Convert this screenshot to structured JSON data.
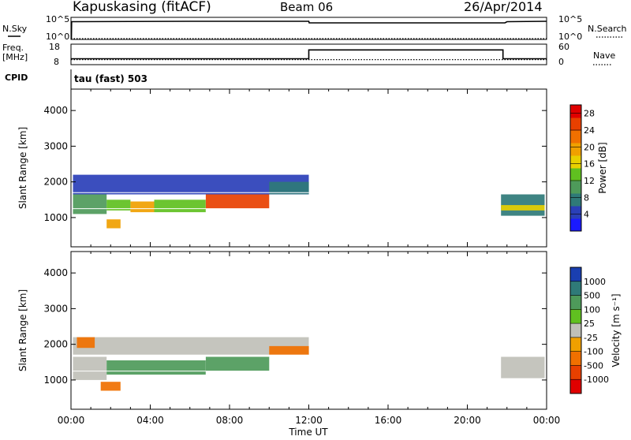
{
  "header": {
    "station": "Kapuskasing (fitACF)",
    "beam": "Beam 06",
    "date": "26/Apr/2014",
    "mode": "tau (fast) 503"
  },
  "left_labels": {
    "nsky": "N.Sky",
    "freq": "Freq.",
    "freq_unit": "[MHz]",
    "cpid": "CPID"
  },
  "right_labels": {
    "nsearch": "N.Search",
    "nave": "Nave"
  },
  "panels": {
    "noise": {
      "tick_top": "10^5",
      "tick_bottom": "10^0",
      "rtick_top": "10^5",
      "rtick_bottom": "10^0"
    },
    "freq": {
      "tick_top": "18",
      "tick_bottom": "8",
      "rtick_top": "60",
      "rtick_bottom": "0"
    },
    "power": {
      "ylabel": "Slant Range [km]",
      "colorbar_label": "Power [dB]"
    },
    "velocity": {
      "ylabel": "Slant Range [km]",
      "colorbar_label": "Velocity [m s⁻¹]"
    }
  },
  "xaxis": {
    "label": "Time UT",
    "ticks": [
      "00:00",
      "04:00",
      "08:00",
      "12:00",
      "16:00",
      "20:00",
      "00:00"
    ]
  },
  "chart_data": [
    {
      "type": "line",
      "name": "noise",
      "xlabel": "",
      "ylabel": "",
      "xlim": [
        0,
        24
      ],
      "series": [
        {
          "name": "N.Sky",
          "x": [
            0,
            0.02,
            0.03,
            6,
            12,
            12.02,
            21.9,
            22,
            24
          ],
          "y": [
            0,
            0,
            4.3,
            4.4,
            4.4,
            4.0,
            4.0,
            4.3,
            4.4
          ]
        },
        {
          "name": "N.Search",
          "x": [
            0,
            24
          ],
          "y": [
            0,
            0
          ]
        }
      ],
      "ylim": [
        0,
        5
      ]
    },
    {
      "type": "line",
      "name": "frequency",
      "xlim": [
        0,
        24
      ],
      "series": [
        {
          "name": "Freq.",
          "x": [
            0,
            12,
            12,
            21.8,
            21.8,
            24
          ],
          "y": [
            10.5,
            10.5,
            15.6,
            15.6,
            10.5,
            10.5
          ]
        },
        {
          "name": "Nave",
          "x": [
            0,
            24
          ],
          "y": [
            10,
            10
          ]
        }
      ],
      "ylim": [
        8,
        18
      ]
    },
    {
      "type": "heatmap",
      "name": "power",
      "xlim": [
        0,
        24
      ],
      "ylim": [
        180,
        4600
      ],
      "yticks": [
        1000,
        2000,
        3000,
        4000
      ],
      "colorbar": {
        "label": "Power [dB]",
        "ticks": [
          4,
          8,
          12,
          16,
          20,
          24,
          28
        ],
        "colors": [
          "#1a1aff",
          "#2a3fb8",
          "#2f7a78",
          "#4e9a5a",
          "#60c020",
          "#e8d000",
          "#f0a000",
          "#f07000",
          "#e84000",
          "#e00000"
        ]
      },
      "regions": [
        {
          "t0": 0.1,
          "t1": 12.0,
          "r0": 1650,
          "r1": 2200,
          "value": 6
        },
        {
          "t0": 0.1,
          "t1": 1.8,
          "r0": 1100,
          "r1": 1650,
          "value": 12
        },
        {
          "t0": 1.8,
          "t1": 3.0,
          "r0": 1200,
          "r1": 1500,
          "value": 16
        },
        {
          "t0": 3.0,
          "t1": 4.2,
          "r0": 1150,
          "r1": 1450,
          "value": 20
        },
        {
          "t0": 4.2,
          "t1": 6.8,
          "r0": 1150,
          "r1": 1500,
          "value": 14
        },
        {
          "t0": 6.8,
          "t1": 10.0,
          "r0": 1250,
          "r1": 1650,
          "value": 26
        },
        {
          "t0": 10.0,
          "t1": 12.0,
          "r0": 1650,
          "r1": 2000,
          "value": 10
        },
        {
          "t0": 1.8,
          "t1": 2.5,
          "r0": 700,
          "r1": 950,
          "value": 20
        },
        {
          "t0": 21.7,
          "t1": 23.9,
          "r0": 1050,
          "r1": 1650,
          "value": 10
        },
        {
          "t0": 21.7,
          "t1": 23.9,
          "r0": 1200,
          "r1": 1350,
          "value": 18
        }
      ]
    },
    {
      "type": "heatmap",
      "name": "velocity",
      "xlim": [
        0,
        24
      ],
      "ylim": [
        180,
        4600
      ],
      "yticks": [
        1000,
        2000,
        3000,
        4000
      ],
      "colorbar": {
        "label": "Velocity [m s⁻¹]",
        "ticks": [
          1000,
          500,
          100,
          25,
          -25,
          -100,
          -500,
          -1000
        ],
        "colors": [
          "#1a3fb0",
          "#2f7a78",
          "#4e9a5a",
          "#60c020",
          "#c0c0b8",
          "#f0a000",
          "#f07000",
          "#e84000",
          "#e00000"
        ]
      },
      "regions": [
        {
          "t0": 0.1,
          "t1": 12.0,
          "r0": 1700,
          "r1": 2200,
          "value": 0
        },
        {
          "t0": 0.1,
          "t1": 1.8,
          "r0": 1000,
          "r1": 1650,
          "value": 0
        },
        {
          "t0": 1.8,
          "t1": 6.8,
          "r0": 1150,
          "r1": 1550,
          "value": 300
        },
        {
          "t0": 6.8,
          "t1": 10.0,
          "r0": 1250,
          "r1": 1650,
          "value": 300
        },
        {
          "t0": 10.0,
          "t1": 12.0,
          "r0": 1700,
          "r1": 1950,
          "value": -200
        },
        {
          "t0": 0.3,
          "t1": 1.2,
          "r0": 1900,
          "r1": 2200,
          "value": -200
        },
        {
          "t0": 1.5,
          "t1": 2.5,
          "r0": 700,
          "r1": 950,
          "value": -300
        },
        {
          "t0": 21.7,
          "t1": 23.9,
          "r0": 1050,
          "r1": 1650,
          "value": 0
        }
      ]
    }
  ]
}
